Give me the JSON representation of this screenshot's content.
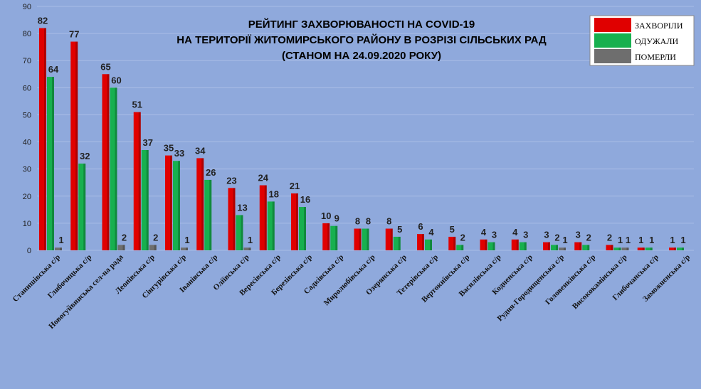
{
  "chart_data": {
    "type": "bar",
    "title_lines": [
      "РЕЙТИНГ ЗАХВОРЮВАНОСТІ НА COVID-19",
      "НА ТЕРИТОРІЇ ЖИТОМИРСЬКОГО РАЙОНУ В РОЗРІЗІ СІЛЬСЬКИХ РАД",
      "(СТАНОМ НА 24.09.2020 РОКУ)"
    ],
    "ylim": [
      0,
      90
    ],
    "yticks": [
      0,
      10,
      20,
      30,
      40,
      50,
      60,
      70,
      80,
      90
    ],
    "grid": true,
    "legend_position": "top-right",
    "categories": [
      "Станишівська с/р",
      "Глибочицька с/р",
      "Новогуйвинська сел-на рада",
      "Леонівська с/р",
      "Сінгурівська с/р",
      "Іванівська с/р",
      "Оліївська с/р",
      "Вересівська с/р",
      "Березівська с/р",
      "Садківська с/р",
      "Миролюбівська с/р",
      "Озерянська с/р",
      "Тетерівська с/р",
      "Вертокиївська с/р",
      "Василівська с/р",
      "Кодненська с/р",
      "Рудня-Городищенська с/р",
      "Головенківська с/р",
      "Висококамінська с/р",
      "Глибочанська с/р",
      "Заможненська с/р"
    ],
    "series": [
      {
        "name": "ЗАХВОРІЛИ",
        "color": "#e00000",
        "values": [
          82,
          77,
          65,
          51,
          35,
          34,
          23,
          24,
          21,
          10,
          8,
          8,
          6,
          5,
          4,
          4,
          3,
          3,
          2,
          1,
          1
        ]
      },
      {
        "name": "ОДУЖАЛИ",
        "color": "#17b04f",
        "values": [
          64,
          32,
          60,
          37,
          33,
          26,
          13,
          18,
          16,
          9,
          8,
          5,
          4,
          2,
          3,
          3,
          2,
          2,
          1,
          1,
          1
        ]
      },
      {
        "name": "ПОМЕРЛИ",
        "color": "#6e6e6e",
        "values": [
          1,
          0,
          2,
          2,
          1,
          0,
          1,
          0,
          0,
          0,
          0,
          0,
          0,
          0,
          0,
          0,
          1,
          0,
          1,
          0,
          0
        ]
      }
    ]
  }
}
